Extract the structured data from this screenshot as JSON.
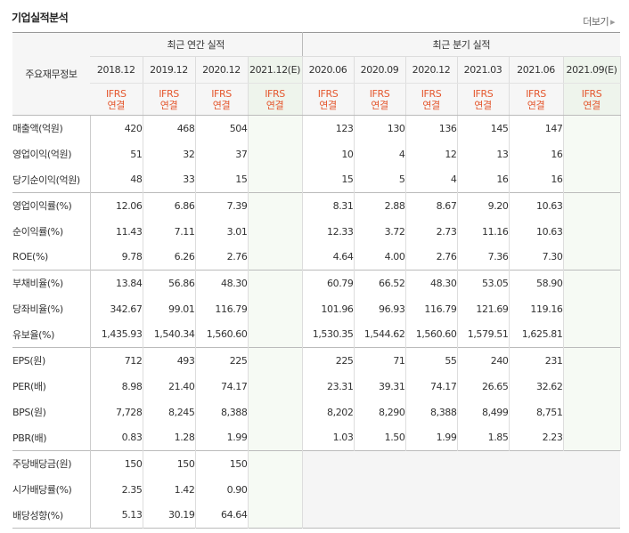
{
  "header": {
    "title": "기업실적분석",
    "more_label": "더보기"
  },
  "table": {
    "row_header_label": "주요재무정보",
    "annual_label": "최근 연간 실적",
    "quarter_label": "최근 분기 실적",
    "annual_periods": [
      "2018.12",
      "2019.12",
      "2020.12",
      "2021.12(E)"
    ],
    "quarter_periods": [
      "2020.06",
      "2020.09",
      "2020.12",
      "2021.03",
      "2021.06",
      "2021.09(E)"
    ],
    "ifrs_line1": "IFRS",
    "ifrs_line2": "연결",
    "rows": [
      {
        "label": "매출액(억원)",
        "annual": [
          "420",
          "468",
          "504",
          ""
        ],
        "quarter": [
          "123",
          "130",
          "136",
          "145",
          "147",
          ""
        ]
      },
      {
        "label": "영업이익(억원)",
        "annual": [
          "51",
          "32",
          "37",
          ""
        ],
        "quarter": [
          "10",
          "4",
          "12",
          "13",
          "16",
          ""
        ]
      },
      {
        "label": "당기순이익(억원)",
        "annual": [
          "48",
          "33",
          "15",
          ""
        ],
        "quarter": [
          "15",
          "5",
          "4",
          "16",
          "16",
          ""
        ]
      },
      {
        "label": "영업이익률(%)",
        "annual": [
          "12.06",
          "6.86",
          "7.39",
          ""
        ],
        "quarter": [
          "8.31",
          "2.88",
          "8.67",
          "9.20",
          "10.63",
          ""
        ]
      },
      {
        "label": "순이익률(%)",
        "annual": [
          "11.43",
          "7.11",
          "3.01",
          ""
        ],
        "quarter": [
          "12.33",
          "3.72",
          "2.73",
          "11.16",
          "10.63",
          ""
        ]
      },
      {
        "label": "ROE(%)",
        "annual": [
          "9.78",
          "6.26",
          "2.76",
          ""
        ],
        "quarter": [
          "4.64",
          "4.00",
          "2.76",
          "7.36",
          "7.30",
          ""
        ]
      },
      {
        "label": "부채비율(%)",
        "annual": [
          "13.84",
          "56.86",
          "48.30",
          ""
        ],
        "quarter": [
          "60.79",
          "66.52",
          "48.30",
          "53.05",
          "58.90",
          ""
        ]
      },
      {
        "label": "당좌비율(%)",
        "annual": [
          "342.67",
          "99.01",
          "116.79",
          ""
        ],
        "quarter": [
          "101.96",
          "96.93",
          "116.79",
          "121.69",
          "119.16",
          ""
        ]
      },
      {
        "label": "유보율(%)",
        "annual": [
          "1,435.93",
          "1,540.34",
          "1,560.60",
          ""
        ],
        "quarter": [
          "1,530.35",
          "1,544.62",
          "1,560.60",
          "1,579.51",
          "1,625.81",
          ""
        ]
      },
      {
        "label": "EPS(원)",
        "annual": [
          "712",
          "493",
          "225",
          ""
        ],
        "quarter": [
          "225",
          "71",
          "55",
          "240",
          "231",
          ""
        ]
      },
      {
        "label": "PER(배)",
        "annual": [
          "8.98",
          "21.40",
          "74.17",
          ""
        ],
        "quarter": [
          "23.31",
          "39.31",
          "74.17",
          "26.65",
          "32.62",
          ""
        ]
      },
      {
        "label": "BPS(원)",
        "annual": [
          "7,728",
          "8,245",
          "8,388",
          ""
        ],
        "quarter": [
          "8,202",
          "8,290",
          "8,388",
          "8,499",
          "8,751",
          ""
        ]
      },
      {
        "label": "PBR(배)",
        "annual": [
          "0.83",
          "1.28",
          "1.99",
          ""
        ],
        "quarter": [
          "1.03",
          "1.50",
          "1.99",
          "1.85",
          "2.23",
          ""
        ]
      },
      {
        "label": "주당배당금(원)",
        "annual": [
          "150",
          "150",
          "150",
          ""
        ],
        "quarter": null
      },
      {
        "label": "시가배당률(%)",
        "annual": [
          "2.35",
          "1.42",
          "0.90",
          ""
        ],
        "quarter": null
      },
      {
        "label": "배당성향(%)",
        "annual": [
          "5.13",
          "30.19",
          "64.64",
          ""
        ],
        "quarter": null
      }
    ],
    "group_starts": [
      3,
      6,
      9,
      13
    ]
  },
  "colors": {
    "ifrs": "#e4572e",
    "estimate_bg": "#f6faf4",
    "header_bg": "#f6f6f6"
  }
}
